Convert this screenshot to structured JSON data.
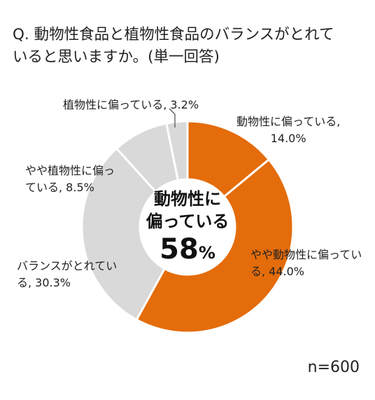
{
  "title": {
    "line1": "Q. 動物性食品と植物性食品のバランスがとれて",
    "line2": "いると思いますか。(単一回答)"
  },
  "chart_data": {
    "type": "pie",
    "donut": true,
    "categories": [
      "動物性に偏っている",
      "やや動物性に偏っている",
      "バランスがとれている",
      "やや植物性に偏っている",
      "植物性に偏っている"
    ],
    "values": [
      14.0,
      44.0,
      30.3,
      8.5,
      3.2
    ],
    "colors": [
      "#E46C0A",
      "#E46C0A",
      "#D9D9D9",
      "#D9D9D9",
      "#D9D9D9"
    ],
    "slice_labels": [
      [
        "動物性に偏っている,",
        "14.0%"
      ],
      [
        "やや動物性に偏ってい",
        "る, 44.0%"
      ],
      [
        "バランスがとれてい",
        "る, 30.3%"
      ],
      [
        "やや植物性に偏っ",
        "ている, 8.5%"
      ],
      [
        "植物性に偏っている, 3.2%"
      ]
    ],
    "center_text": [
      "動物性に",
      "偏っている"
    ],
    "center_value": "58",
    "center_unit": "%"
  },
  "sample": "n=600"
}
